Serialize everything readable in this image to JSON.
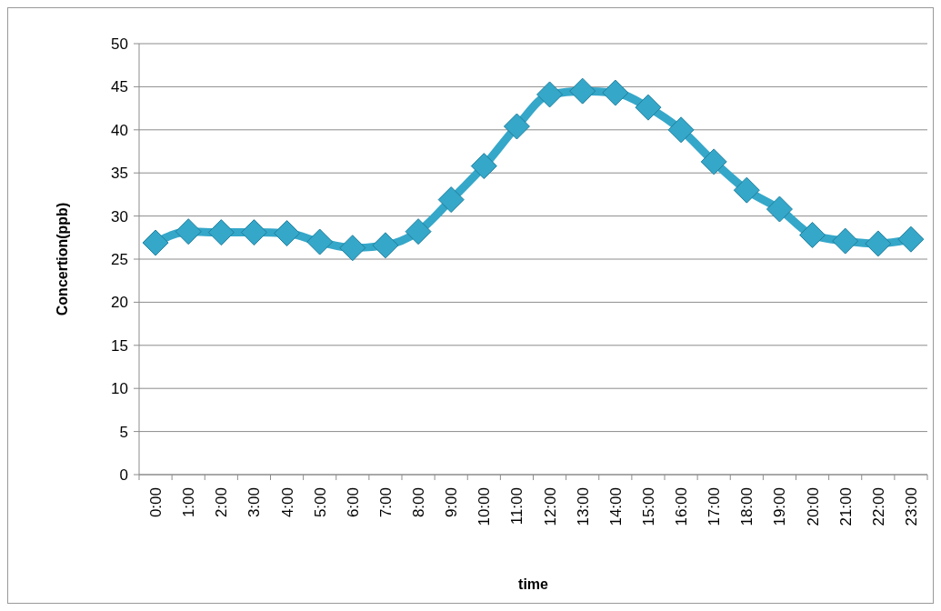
{
  "chart_data": {
    "type": "line",
    "xlabel": "time",
    "ylabel": "Concertion(ppb)",
    "categories": [
      "0:00",
      "1:00",
      "2:00",
      "3:00",
      "4:00",
      "5:00",
      "6:00",
      "7:00",
      "8:00",
      "9:00",
      "10:00",
      "11:00",
      "12:00",
      "13:00",
      "14:00",
      "15:00",
      "16:00",
      "17:00",
      "18:00",
      "19:00",
      "20:00",
      "21:00",
      "22:00",
      "23:00"
    ],
    "series": [
      {
        "color": "#35a7c9",
        "values": [
          26.9,
          28.2,
          28.1,
          28.1,
          28,
          27,
          26.3,
          26.6,
          28.2,
          31.9,
          35.8,
          40.4,
          44.1,
          44.5,
          44.3,
          42.6,
          40,
          36.3,
          33,
          30.8,
          27.8,
          27.1,
          26.8,
          27.3
        ]
      }
    ],
    "ylim": [
      0,
      50
    ],
    "yticks": [
      0,
      5,
      10,
      15,
      20,
      25,
      30,
      35,
      40,
      45,
      50
    ],
    "grid": "y",
    "marker": "diamond",
    "line_style": "solid"
  }
}
